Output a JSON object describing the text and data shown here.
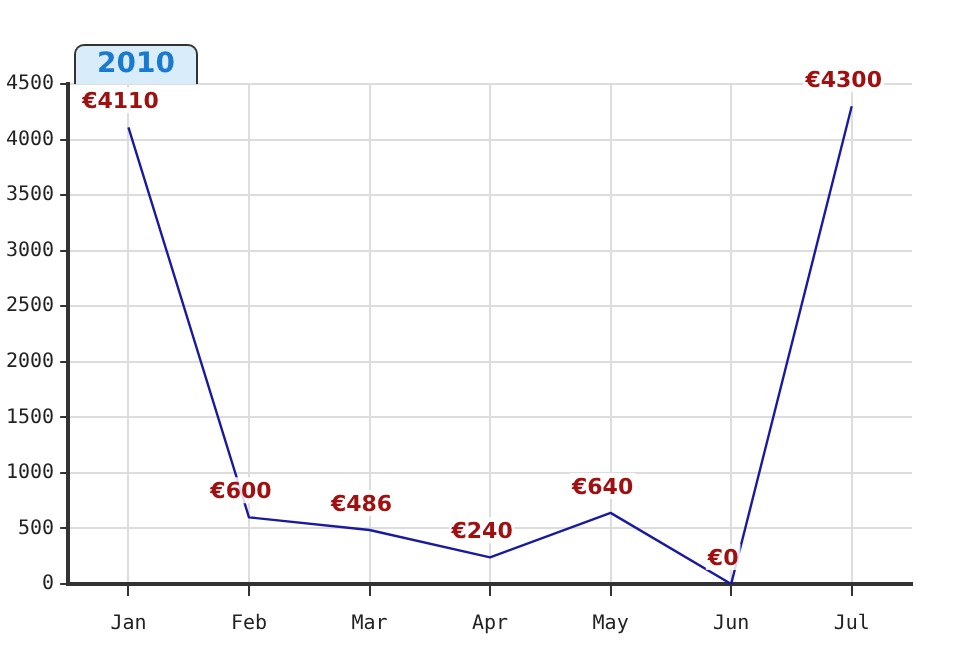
{
  "chart_data": {
    "type": "line",
    "title": "2010",
    "categories": [
      "Jan",
      "Feb",
      "Mar",
      "Apr",
      "May",
      "Jun",
      "Jul"
    ],
    "series": [
      {
        "color": "#1a1aa0",
        "values": [
          4110,
          600,
          486,
          240,
          640,
          0,
          4300
        ],
        "value_labels": [
          "€4110",
          "€600",
          "€486",
          "€240",
          "€640",
          "€0",
          "€4300"
        ]
      }
    ],
    "ylim": [
      0,
      4500
    ],
    "yticks": [
      0,
      500,
      1000,
      1500,
      2000,
      2500,
      3000,
      3500,
      4000,
      4500
    ],
    "grid": true,
    "legend": false,
    "marker": "none",
    "line_style": "solid"
  }
}
